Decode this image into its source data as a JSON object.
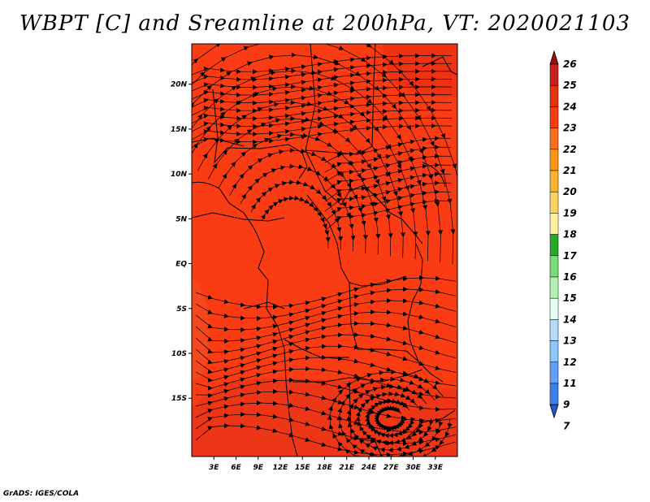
{
  "title": "WBPT [C] and Sreamline at 200hPa, VT: 2020021103",
  "credit": "GrADS: IGES/COLA",
  "map": {
    "lon_range": [
      0,
      36
    ],
    "lat_range": [
      -21.5,
      24.5
    ],
    "lon_ticks": [
      {
        "value": 3,
        "label": "3E"
      },
      {
        "value": 6,
        "label": "6E"
      },
      {
        "value": 9,
        "label": "9E"
      },
      {
        "value": 12,
        "label": "12E"
      },
      {
        "value": 15,
        "label": "15E"
      },
      {
        "value": 18,
        "label": "18E"
      },
      {
        "value": 21,
        "label": "21E"
      },
      {
        "value": 24,
        "label": "24E"
      },
      {
        "value": 27,
        "label": "27E"
      },
      {
        "value": 30,
        "label": "30E"
      },
      {
        "value": 33,
        "label": "33E"
      }
    ],
    "lat_ticks": [
      {
        "value": 20,
        "label": "20N"
      },
      {
        "value": 15,
        "label": "15N"
      },
      {
        "value": 10,
        "label": "10N"
      },
      {
        "value": 5,
        "label": "5N"
      },
      {
        "value": 0,
        "label": "EQ"
      },
      {
        "value": -5,
        "label": "5S"
      },
      {
        "value": -10,
        "label": "10S"
      },
      {
        "value": -15,
        "label": "15S"
      }
    ],
    "background_color": "#fa3c14",
    "shading_regions": [
      {
        "name": "ne-warm-core",
        "color": "#e62814"
      },
      {
        "name": "east-jet-core",
        "color": "#f03c1e"
      },
      {
        "name": "sw-moderate",
        "color": "#ee5028"
      },
      {
        "name": "south-dark",
        "color": "#e0321a"
      }
    ]
  },
  "colorbar": {
    "levels": [
      "26",
      "25",
      "24",
      "23",
      "22",
      "21",
      "20",
      "19",
      "18",
      "17",
      "16",
      "15",
      "14",
      "13",
      "12",
      "11",
      "9",
      "7"
    ],
    "colors": [
      "#a50a0a",
      "#c81e1e",
      "#e6320f",
      "#fa3c14",
      "#fa6e1e",
      "#fa9614",
      "#fab432",
      "#fad264",
      "#fff0a0",
      "#28aa28",
      "#78dc78",
      "#b4f0b4",
      "#e6fff0",
      "#b4dcfa",
      "#8cc8fa",
      "#64a0fa",
      "#3c82e6",
      "#1e5ad2"
    ]
  }
}
